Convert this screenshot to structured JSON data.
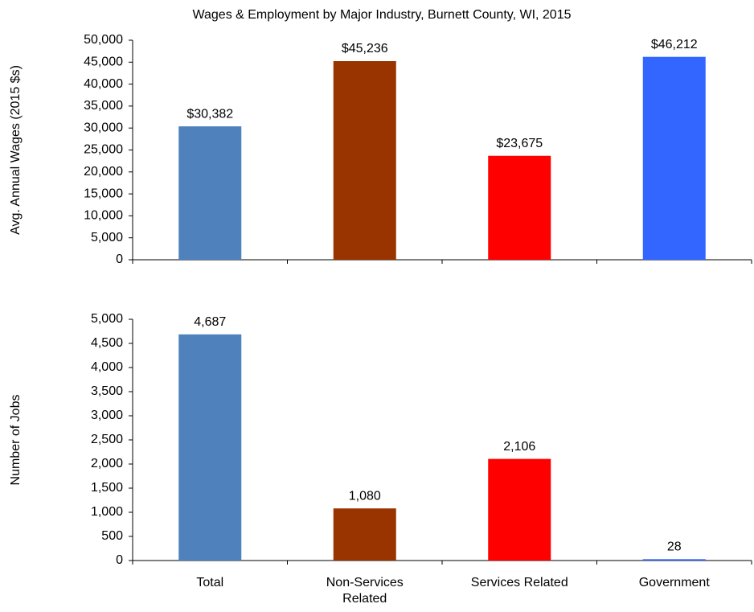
{
  "chart_data": [
    {
      "type": "bar",
      "title": "Wages & Employment by Major Industry, Burnett County, WI, 2015",
      "y_label": "Avg. Annual Wages (2015 $s)",
      "values": [
        30382,
        45236,
        23675,
        46212
      ],
      "value_labels": [
        "$30,382",
        "$45,236",
        "$23,675",
        "$46,212"
      ],
      "colors": [
        "#4f81bd",
        "#993300",
        "#ff0000",
        "#3366ff"
      ],
      "ylim": [
        0,
        50000
      ],
      "yticks": [
        0,
        {
          "value": 5000,
          "label": "5,000"
        },
        {
          "value": 10000,
          "label": "10,000"
        },
        {
          "value": 15000,
          "label": "15,000"
        },
        {
          "value": 20000,
          "label": "20,000"
        },
        {
          "value": 25000,
          "label": "25,000"
        },
        {
          "value": 30000,
          "label": "30,000"
        },
        {
          "value": 35000,
          "label": "35,000"
        },
        {
          "value": 40000,
          "label": "40,000"
        },
        {
          "value": 45000,
          "label": "45,000"
        },
        {
          "value": 50000,
          "label": "50,000"
        }
      ]
    },
    {
      "type": "bar",
      "y_label": "Number of Jobs",
      "categories": [
        "Total",
        "Non-Services Related",
        "Services Related",
        "Government"
      ],
      "values": [
        4687,
        1080,
        2106,
        28
      ],
      "value_labels": [
        "4,687",
        "1,080",
        "2,106",
        "28"
      ],
      "colors": [
        "#4f81bd",
        "#993300",
        "#ff0000",
        "#3366ff"
      ],
      "ylim": [
        0,
        5000
      ],
      "yticks": [
        0,
        500,
        {
          "value": 1000,
          "label": "1,000"
        },
        {
          "value": 1500,
          "label": "1,500"
        },
        {
          "value": 2000,
          "label": "2,000"
        },
        {
          "value": 2500,
          "label": "2,500"
        },
        {
          "value": 3000,
          "label": "3,000"
        },
        {
          "value": 3500,
          "label": "3,500"
        },
        {
          "value": 4000,
          "label": "4,000"
        },
        {
          "value": 4500,
          "label": "4,500"
        },
        {
          "value": 5000,
          "label": "5,000"
        }
      ]
    }
  ]
}
